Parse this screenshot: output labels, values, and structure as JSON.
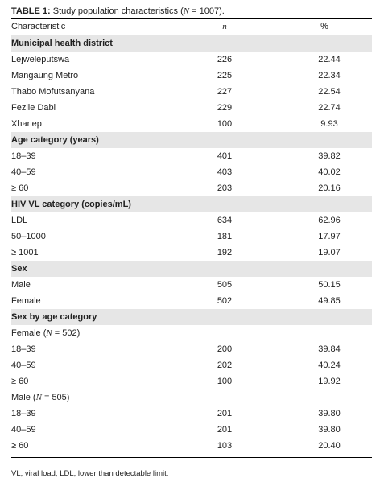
{
  "caption": {
    "label": "TABLE 1:",
    "text_before": " Study population characteristics (",
    "n_symbol": "N",
    "text_after": " = 1007)."
  },
  "header": {
    "characteristic": "Characteristic",
    "n": "n",
    "percent": "%"
  },
  "rows": [
    {
      "type": "section",
      "label": "Municipal health district"
    },
    {
      "type": "data",
      "label": "Lejweleputswa",
      "n": "226",
      "pct": "22.44"
    },
    {
      "type": "data",
      "label": "Mangaung Metro",
      "n": "225",
      "pct": "22.34"
    },
    {
      "type": "data",
      "label": "Thabo Mofutsanyana",
      "n": "227",
      "pct": "22.54"
    },
    {
      "type": "data",
      "label": "Fezile Dabi",
      "n": "229",
      "pct": "22.74"
    },
    {
      "type": "data",
      "label": "Xhariep",
      "n": "100",
      "pct": "9.93"
    },
    {
      "type": "section",
      "label": "Age category (years)"
    },
    {
      "type": "data",
      "label": "18–39",
      "n": "401",
      "pct": "39.82"
    },
    {
      "type": "data",
      "label": "40–59",
      "n": "403",
      "pct": "40.02"
    },
    {
      "type": "data",
      "label": "≥ 60",
      "n": "203",
      "pct": "20.16"
    },
    {
      "type": "section",
      "label": "HIV VL category (copies/mL)"
    },
    {
      "type": "data",
      "label": "LDL",
      "n": "634",
      "pct": "62.96"
    },
    {
      "type": "data",
      "label": "50–1000",
      "n": "181",
      "pct": "17.97"
    },
    {
      "type": "data",
      "label": "≥ 1001",
      "n": "192",
      "pct": "19.07"
    },
    {
      "type": "section",
      "label": "Sex"
    },
    {
      "type": "data",
      "label": "Male",
      "n": "505",
      "pct": "50.15"
    },
    {
      "type": "data",
      "label": "Female",
      "n": "502",
      "pct": "49.85"
    },
    {
      "type": "section",
      "label": "Sex by age category"
    },
    {
      "type": "subsection",
      "label_before": "Female (",
      "n_symbol": "N",
      "label_after": " = 502)"
    },
    {
      "type": "data",
      "label": "18–39",
      "n": "200",
      "pct": "39.84"
    },
    {
      "type": "data",
      "label": "40–59",
      "n": "202",
      "pct": "40.24"
    },
    {
      "type": "data",
      "label": "≥ 60",
      "n": "100",
      "pct": "19.92"
    },
    {
      "type": "subsection",
      "label_before": "Male (",
      "n_symbol": "N",
      "label_after": " = 505)"
    },
    {
      "type": "data",
      "label": "18–39",
      "n": "201",
      "pct": "39.80"
    },
    {
      "type": "data",
      "label": "40–59",
      "n": "201",
      "pct": "39.80"
    },
    {
      "type": "data",
      "label": "≥ 60",
      "n": "103",
      "pct": "20.40"
    }
  ],
  "footnote": "VL, viral load; LDL, lower than detectable limit."
}
